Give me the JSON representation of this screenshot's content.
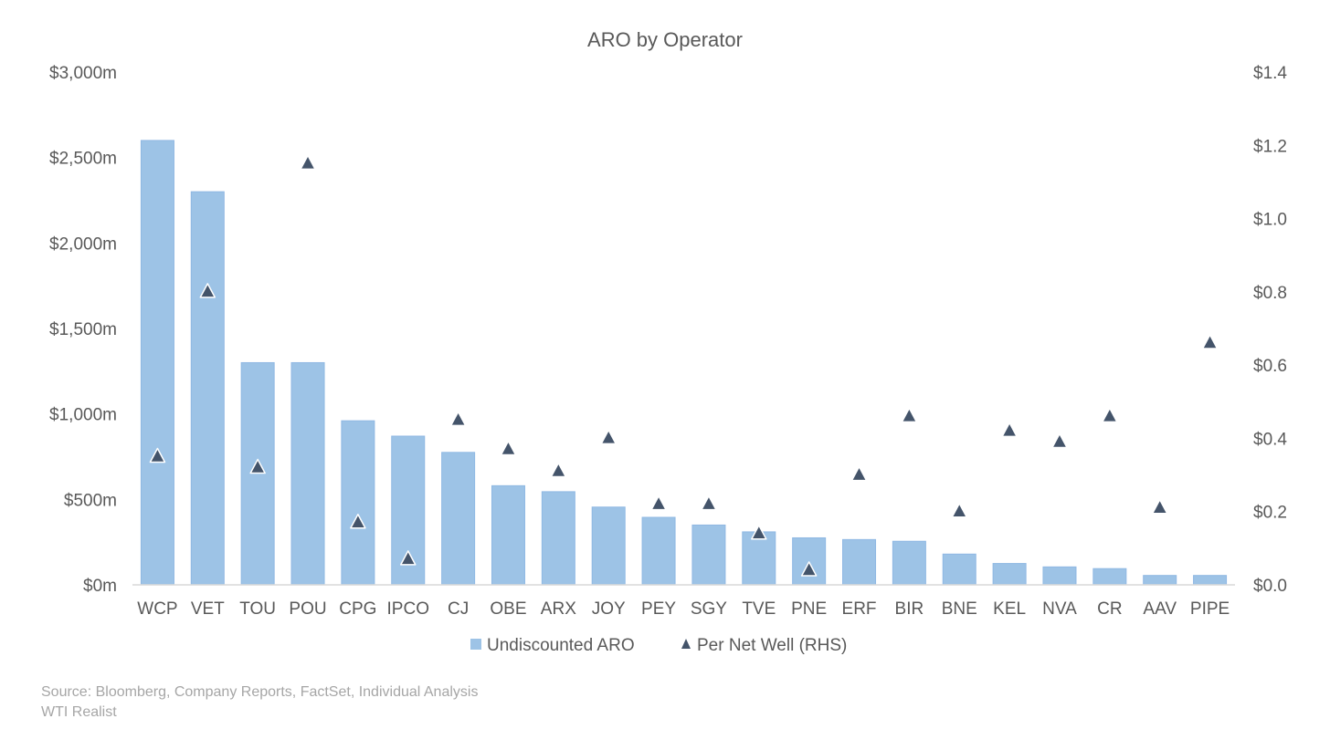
{
  "chart_data": {
    "type": "bar",
    "title": "ARO by Operator",
    "categories": [
      "WCP",
      "VET",
      "TOU",
      "POU",
      "CPG",
      "IPCO",
      "CJ",
      "OBE",
      "ARX",
      "JOY",
      "PEY",
      "SGY",
      "TVE",
      "PNE",
      "ERF",
      "BIR",
      "BNE",
      "KEL",
      "NVA",
      "CR",
      "AAV",
      "PIPE"
    ],
    "series": [
      {
        "name": "Undiscounted ARO",
        "type": "bar",
        "axis": "left",
        "color": "#9DC3E6",
        "values": [
          2600,
          2300,
          1300,
          1300,
          960,
          870,
          775,
          580,
          545,
          455,
          395,
          350,
          310,
          275,
          265,
          255,
          180,
          125,
          105,
          95,
          55,
          55
        ]
      },
      {
        "name": "Per Net Well (RHS)",
        "type": "scatter",
        "marker": "triangle",
        "axis": "right",
        "color": "#44546A",
        "values": [
          0.35,
          0.8,
          0.32,
          1.15,
          0.17,
          0.07,
          0.45,
          0.37,
          0.31,
          0.4,
          0.22,
          0.22,
          0.14,
          0.04,
          0.3,
          0.46,
          0.2,
          0.42,
          0.39,
          0.46,
          0.21,
          0.66
        ]
      }
    ],
    "left_axis": {
      "ylim": [
        0,
        3000
      ],
      "ticks": [
        0,
        500,
        1000,
        1500,
        2000,
        2500,
        3000
      ],
      "tick_labels": [
        "$0m",
        "$500m",
        "$1,000m",
        "$1,500m",
        "$2,000m",
        "$2,500m",
        "$3,000m"
      ]
    },
    "right_axis": {
      "ylim": [
        0,
        1.4
      ],
      "ticks": [
        0,
        0.2,
        0.4,
        0.6,
        0.8,
        1.0,
        1.2,
        1.4
      ],
      "tick_labels": [
        "$0.0",
        "$0.2",
        "$0.4",
        "$0.6",
        "$0.8",
        "$1.0",
        "$1.2",
        "$1.4"
      ]
    },
    "grid": false,
    "legend_placement": "bottom"
  },
  "footer": {
    "source": "Source: Bloomberg, Company Reports, FactSet, Individual Analysis",
    "credit": "WTI Realist"
  }
}
